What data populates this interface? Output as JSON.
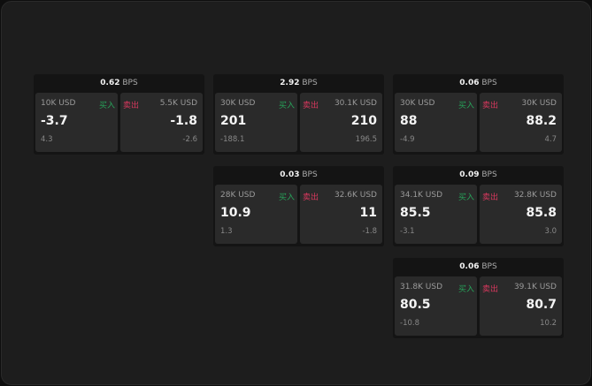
{
  "unit": "BPS",
  "buy_label": "买入",
  "sell_label": "卖出",
  "colors": {
    "buy": "#27a35a",
    "sell": "#d8385e"
  },
  "cards": [
    {
      "spread": "0.62",
      "buy": {
        "qty": "10K USD",
        "price": "-3.7",
        "change": "4.3"
      },
      "sell": {
        "qty": "5.5K USD",
        "price": "-1.8",
        "change": "-2.6"
      }
    },
    {
      "spread": "2.92",
      "buy": {
        "qty": "30K USD",
        "price": "201",
        "change": "-188.1"
      },
      "sell": {
        "qty": "30.1K USD",
        "price": "210",
        "change": "196.5"
      }
    },
    {
      "spread": "0.06",
      "buy": {
        "qty": "30K USD",
        "price": "88",
        "change": "-4.9"
      },
      "sell": {
        "qty": "30K USD",
        "price": "88.2",
        "change": "4.7"
      }
    },
    {
      "spread": "0.03",
      "buy": {
        "qty": "28K USD",
        "price": "10.9",
        "change": "1.3"
      },
      "sell": {
        "qty": "32.6K USD",
        "price": "11",
        "change": "-1.8"
      }
    },
    {
      "spread": "0.09",
      "buy": {
        "qty": "34.1K USD",
        "price": "85.5",
        "change": "-3.1"
      },
      "sell": {
        "qty": "32.8K USD",
        "price": "85.8",
        "change": "3.0"
      }
    },
    {
      "spread": "0.06",
      "buy": {
        "qty": "31.8K USD",
        "price": "80.5",
        "change": "-10.8"
      },
      "sell": {
        "qty": "39.1K USD",
        "price": "80.7",
        "change": "10.2"
      }
    }
  ]
}
